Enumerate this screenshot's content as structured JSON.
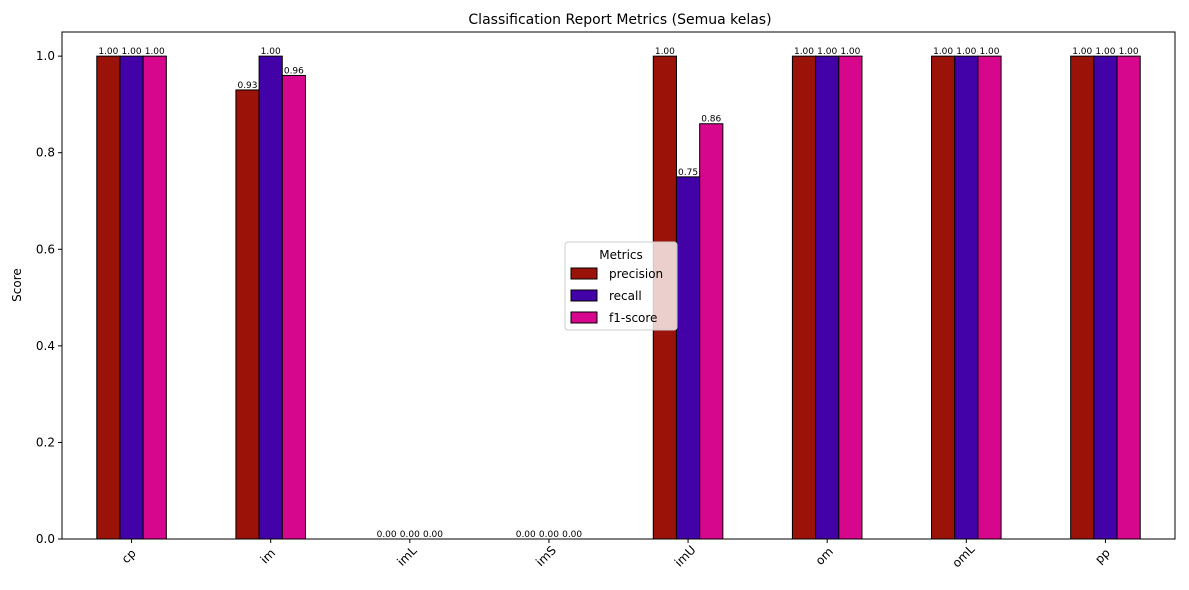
{
  "chart_data": {
    "type": "bar",
    "title": "Classification Report Metrics (Semua kelas)",
    "xlabel": "",
    "ylabel": "Score",
    "ylim": [
      0,
      1.05
    ],
    "yticks": [
      "0.0",
      "0.2",
      "0.4",
      "0.6",
      "0.8",
      "1.0"
    ],
    "categories": [
      "cp",
      "im",
      "imL",
      "imS",
      "imU",
      "om",
      "omL",
      "pp"
    ],
    "series": [
      {
        "name": "precision",
        "color": "#9b1308",
        "values": [
          1.0,
          0.93,
          0.0,
          0.0,
          1.0,
          1.0,
          1.0,
          1.0
        ],
        "labels": [
          "1.00",
          "0.93",
          "0.00",
          "0.00",
          "1.00",
          "1.00",
          "1.00",
          "1.00"
        ]
      },
      {
        "name": "recall",
        "color": "#4202a7",
        "values": [
          1.0,
          1.0,
          0.0,
          0.0,
          0.75,
          1.0,
          1.0,
          1.0
        ],
        "labels": [
          "1.00",
          "1.00",
          "0.00",
          "0.00",
          "0.75",
          "1.00",
          "1.00",
          "1.00"
        ]
      },
      {
        "name": "f1-score",
        "color": "#d6068d",
        "values": [
          1.0,
          0.96,
          0.0,
          0.0,
          0.86,
          1.0,
          1.0,
          1.0
        ],
        "labels": [
          "1.00",
          "0.96",
          "0.00",
          "0.00",
          "0.86",
          "1.00",
          "1.00",
          "1.00"
        ]
      }
    ],
    "legend": {
      "title": "Metrics",
      "placement": "center"
    },
    "grid": false
  }
}
